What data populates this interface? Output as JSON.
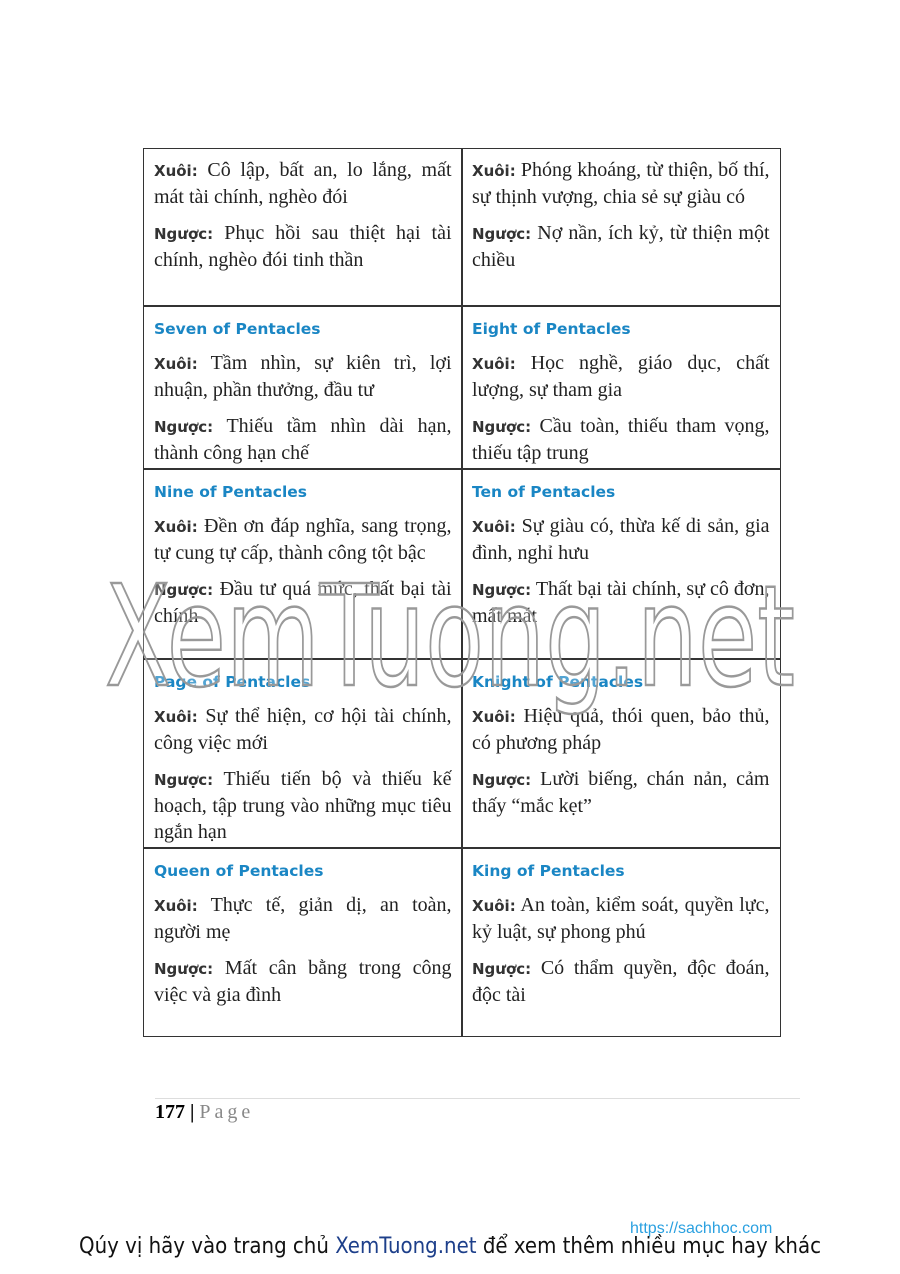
{
  "table": {
    "rows": [
      [
        {
          "upright": {
            "label": "Xuôi:",
            "text": "Cô lập, bất an, lo lắng, mất mát tài chính, nghèo đói"
          },
          "reversed": {
            "label": "Ngược:",
            "text": "Phục hồi sau thiệt hại tài chính, nghèo đói tinh thần"
          }
        },
        {
          "upright": {
            "label": "Xuôi:",
            "text": "Phóng khoáng, từ thiện, bố thí, sự thịnh vượng, chia sẻ sự giàu có"
          },
          "reversed": {
            "label": "Ngược:",
            "text": "Nợ nần, ích kỷ, từ thiện một chiều"
          }
        }
      ],
      [
        {
          "title": "Seven of Pentacles",
          "upright": {
            "label": "Xuôi:",
            "text": "Tầm nhìn, sự kiên trì, lợi nhuận, phần thưởng, đầu tư"
          },
          "reversed": {
            "label": "Ngược:",
            "text": "Thiếu tầm nhìn dài hạn, thành công hạn chế"
          }
        },
        {
          "title": "Eight of Pentacles",
          "upright": {
            "label": "Xuôi:",
            "text": "Học nghề, giáo dục, chất lượng, sự tham gia"
          },
          "reversed": {
            "label": "Ngược:",
            "text": "Cầu toàn, thiếu tham vọng, thiếu tập trung"
          }
        }
      ],
      [
        {
          "title": "Nine of Pentacles",
          "upright": {
            "label": "Xuôi:",
            "text": "Đền ơn đáp nghĩa, sang trọng, tự cung tự cấp, thành công tột bậc"
          },
          "reversed": {
            "label": "Ngược:",
            "text": "Đầu tư quá mức, thất bại tài chính"
          }
        },
        {
          "title": "Ten of Pentacles",
          "upright": {
            "label": "Xuôi:",
            "text": "Sự giàu có, thừa kế di sản, gia đình, nghỉ hưu"
          },
          "reversed": {
            "label": "Ngược:",
            "text": "Thất bại tài chính, sự cô đơn, mất mát"
          }
        }
      ],
      [
        {
          "title": "Page of Pentacles",
          "upright": {
            "label": "Xuôi:",
            "text": "Sự thể hiện, cơ hội tài chính, công việc mới"
          },
          "reversed": {
            "label": "Ngược:",
            "text": "Thiếu tiến bộ và thiếu kế hoạch, tập trung vào những mục tiêu ngắn hạn"
          }
        },
        {
          "title": "Knight of Pentacles",
          "upright": {
            "label": "Xuôi:",
            "text": "Hiệu quả, thói quen, bảo thủ, có phương pháp"
          },
          "reversed": {
            "label": "Ngược:",
            "text": "Lười biếng, chán nản, cảm thấy “mắc kẹt”"
          }
        }
      ],
      [
        {
          "title": "Queen of Pentacles",
          "upright": {
            "label": "Xuôi:",
            "text": "Thực tế, giản dị, an toàn, người mẹ"
          },
          "reversed": {
            "label": "Ngược:",
            "text": "Mất cân bằng trong công việc và gia đình"
          }
        },
        {
          "title": "King of Pentacles",
          "upright": {
            "label": "Xuôi:",
            "text": "An toàn, kiểm soát, quyền lực, kỷ luật, sự phong phú"
          },
          "reversed": {
            "label": "Ngược:",
            "text": "Có thẩm quyền, độc đoán, độc tài"
          }
        }
      ]
    ]
  },
  "watermark": "XemTuong.net",
  "footer": {
    "page_number": "177",
    "separator": "|",
    "page_word": "Page"
  },
  "source_url": "https://sachhoc.com",
  "banner": {
    "before": "Qúy vị hãy vào trang chủ",
    "link": "XemTuong.net",
    "after": "để xem thêm nhiều mục hay khác"
  }
}
